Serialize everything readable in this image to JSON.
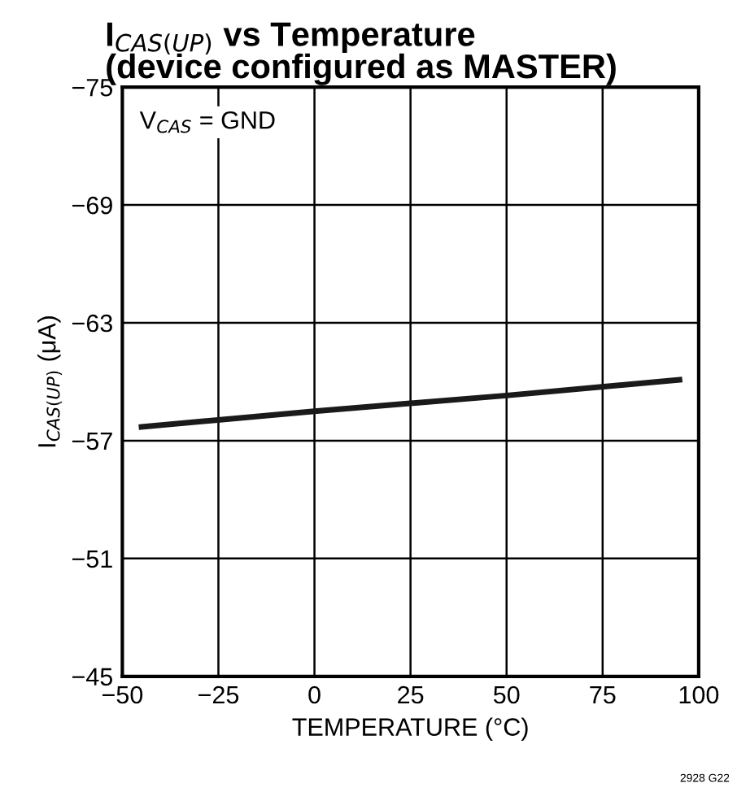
{
  "chart_data": {
    "type": "line",
    "title": "I$_{CAS(UP)}$ vs Temperature\n(device configured as MASTER)",
    "xlabel": "TEMPERATURE (°C)",
    "ylabel": "I$_{CAS(UP)}$ (μA)",
    "annotations": [
      "V$_{CAS}$ = GND",
      "2928 G22"
    ],
    "x": [
      -45,
      0,
      50,
      95
    ],
    "series": [
      {
        "color": "#1a1a1a",
        "values": [
          -57.7,
          -58.5,
          -59.3,
          -60.1
        ]
      }
    ],
    "xlim": [
      -50,
      100
    ],
    "xticks": [
      -50,
      -25,
      0,
      25,
      50,
      75,
      100
    ],
    "ylim": [
      -45,
      -75
    ],
    "yticks": [
      -45,
      -51,
      -57,
      -63,
      -69,
      -75
    ],
    "grid": true,
    "marker": "none",
    "line_style": "solid"
  }
}
